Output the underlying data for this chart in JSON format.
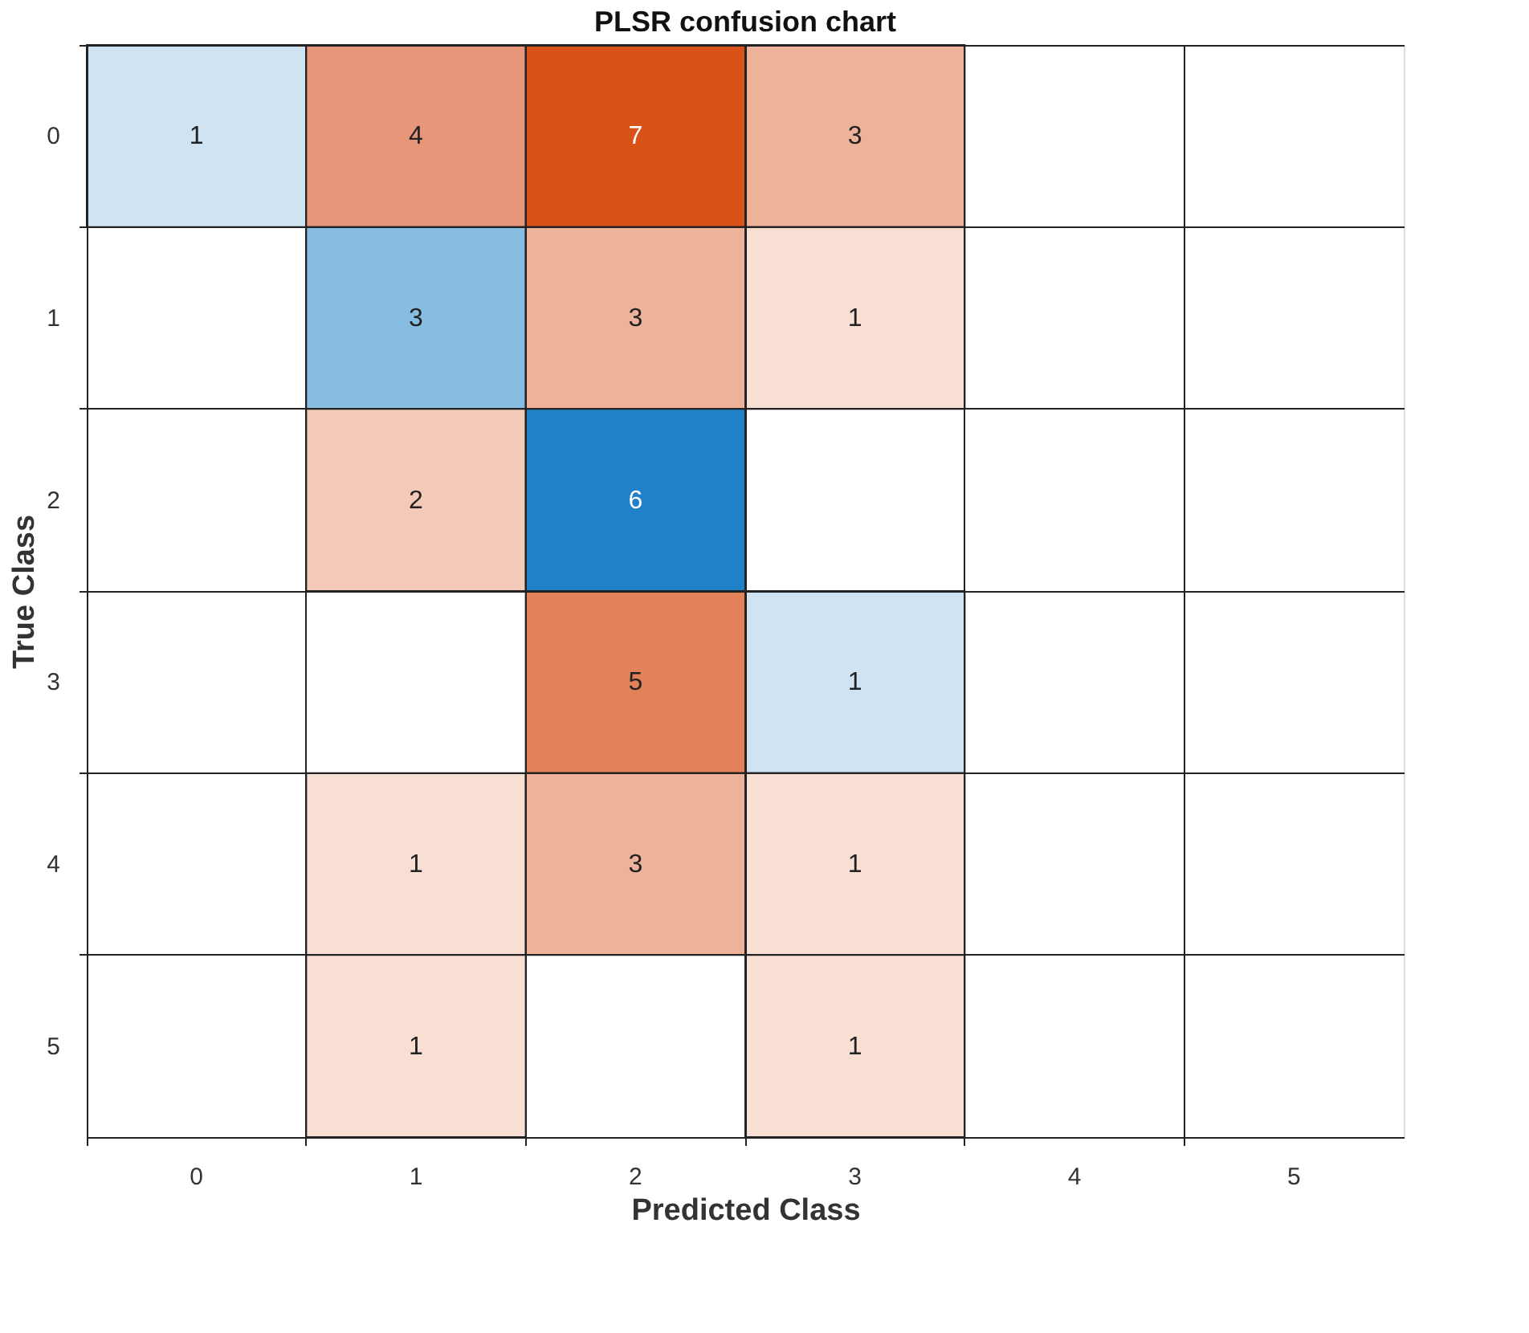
{
  "chart_data": {
    "type": "heatmap",
    "title": "PLSR confusion chart",
    "xlabel": "Predicted Class",
    "ylabel": "True Class",
    "categories": [
      "0",
      "1",
      "2",
      "3",
      "4",
      "5"
    ],
    "y_categories": [
      "0",
      "1",
      "2",
      "3",
      "4",
      "5"
    ],
    "cells": [
      [
        1,
        4,
        7,
        3,
        null,
        null
      ],
      [
        null,
        3,
        3,
        1,
        null,
        null
      ],
      [
        null,
        2,
        6,
        null,
        null,
        null
      ],
      [
        null,
        null,
        5,
        1,
        null,
        null
      ],
      [
        null,
        1,
        3,
        1,
        null,
        null
      ],
      [
        null,
        1,
        null,
        1,
        null,
        null
      ]
    ],
    "colors": [
      [
        "#cfe3f2",
        "#e8967a",
        "#d95319",
        "#eeb29b",
        null,
        null
      ],
      [
        null,
        "#86bde0",
        "#eeb29b",
        "#f8dfd4",
        null,
        null
      ],
      [
        null,
        "#f3c9b7",
        "#2080c8",
        null,
        null,
        null
      ],
      [
        null,
        null,
        "#e38158",
        "#cfe3f2",
        null,
        null
      ],
      [
        null,
        "#f8dfd4",
        "#eeb29b",
        "#f8dfd4",
        null,
        null
      ],
      [
        null,
        "#f8dfd4",
        null,
        "#f8dfd4",
        null,
        null
      ]
    ],
    "data_labels": true,
    "grid": true
  }
}
